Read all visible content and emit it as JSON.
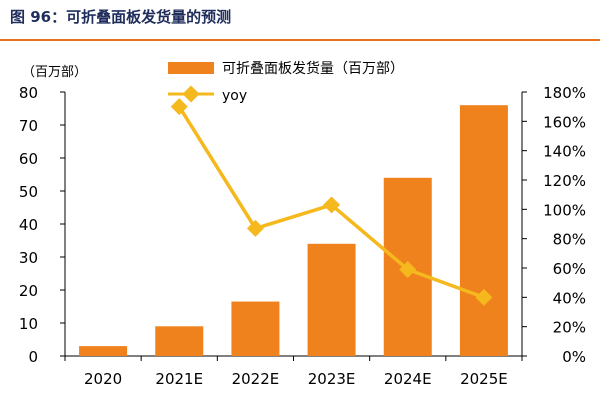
{
  "figure": {
    "title": "图 96：可折叠面板发货量的预测",
    "accent_color": "#e8711c",
    "title_color": "#1f2d5c"
  },
  "chart_data": {
    "type": "bar",
    "categories": [
      "2020",
      "2021E",
      "2022E",
      "2023E",
      "2024E",
      "2025E"
    ],
    "series": [
      {
        "name": "可折叠面板发货量（百万部）",
        "kind": "bar",
        "axis": "left",
        "values": [
          3,
          9,
          16.5,
          34,
          54,
          76
        ],
        "color": "#f0821e"
      },
      {
        "name": "yoy",
        "kind": "line",
        "axis": "right",
        "values": [
          null,
          170,
          87,
          103,
          59,
          40
        ],
        "color": "#f5b81d"
      }
    ],
    "y_left": {
      "unit_label": "（百万部）",
      "min": 0,
      "max": 80,
      "ticks": [
        "0",
        "10",
        "20",
        "30",
        "40",
        "50",
        "60",
        "70",
        "80"
      ]
    },
    "y_right": {
      "min": 0,
      "max": 180,
      "ticks": [
        "0%",
        "20%",
        "40%",
        "60%",
        "80%",
        "100%",
        "120%",
        "140%",
        "160%",
        "180%"
      ]
    },
    "legend_position": "top",
    "grid": false
  }
}
